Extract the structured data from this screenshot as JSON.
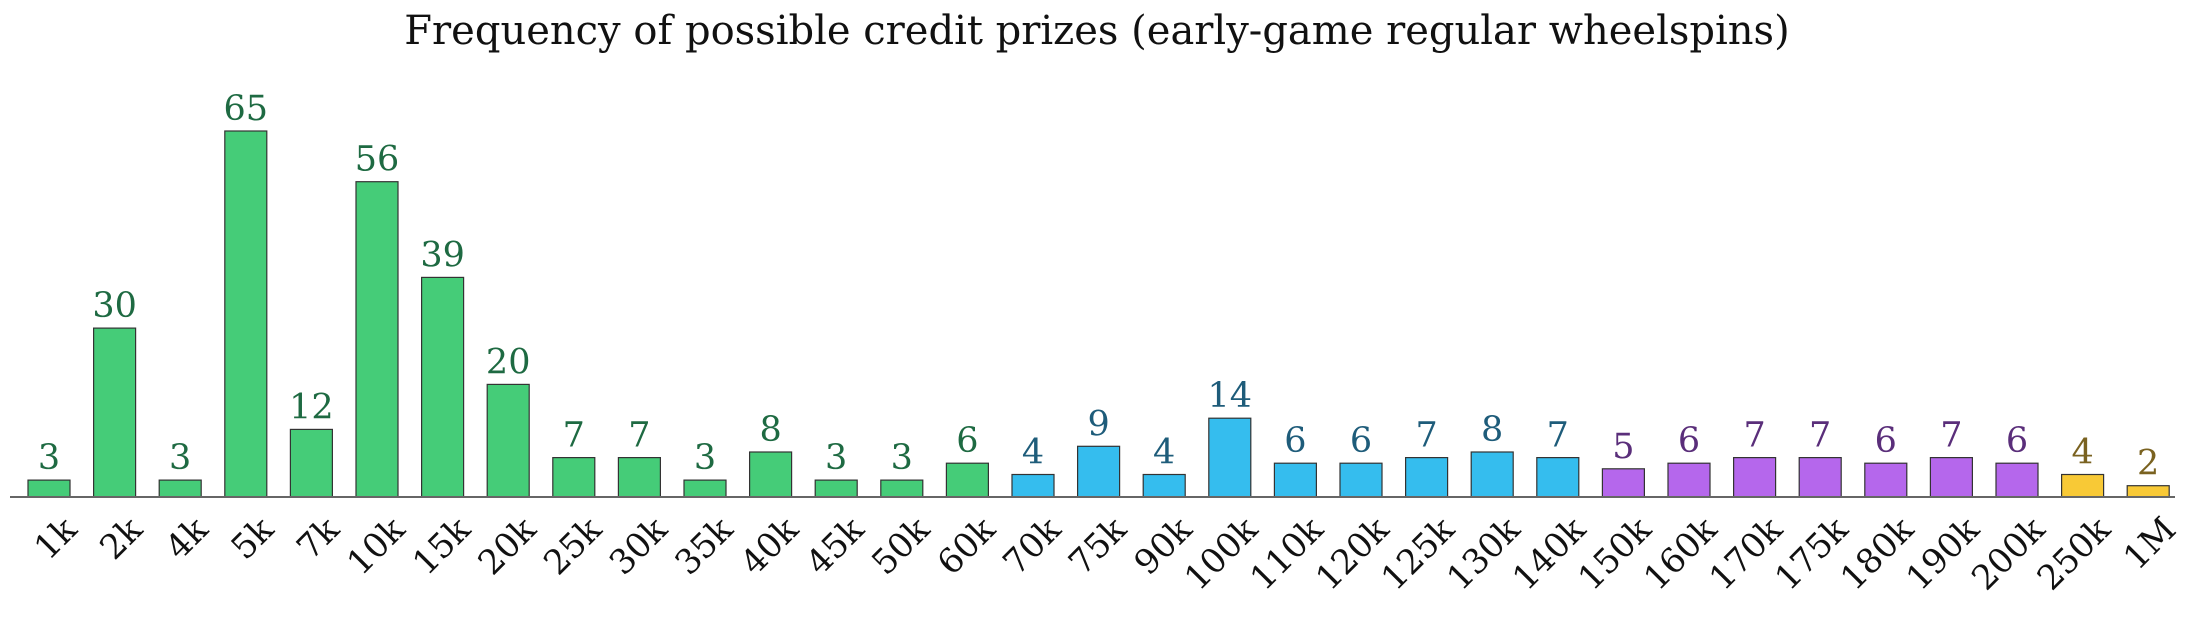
{
  "chart_data": {
    "type": "bar",
    "title": "Frequency of possible credit prizes (early-game regular wheelspins)",
    "xlabel": "",
    "ylabel": "",
    "ylim": [
      0,
      65
    ],
    "grid": false,
    "categories": [
      "1k",
      "2k",
      "4k",
      "5k",
      "7k",
      "10k",
      "15k",
      "20k",
      "25k",
      "30k",
      "35k",
      "40k",
      "45k",
      "50k",
      "60k",
      "70k",
      "75k",
      "90k",
      "100k",
      "110k",
      "120k",
      "125k",
      "130k",
      "140k",
      "150k",
      "160k",
      "170k",
      "175k",
      "180k",
      "190k",
      "200k",
      "250k",
      "1M"
    ],
    "values": [
      3,
      30,
      3,
      65,
      12,
      56,
      39,
      20,
      7,
      7,
      3,
      8,
      3,
      3,
      6,
      4,
      9,
      4,
      14,
      6,
      6,
      7,
      8,
      7,
      5,
      6,
      7,
      7,
      6,
      7,
      6,
      4,
      2
    ],
    "tiers": [
      "green",
      "green",
      "green",
      "green",
      "green",
      "green",
      "green",
      "green",
      "green",
      "green",
      "green",
      "green",
      "green",
      "green",
      "green",
      "blue",
      "blue",
      "blue",
      "blue",
      "blue",
      "blue",
      "blue",
      "blue",
      "blue",
      "purple",
      "purple",
      "purple",
      "purple",
      "purple",
      "purple",
      "purple",
      "gold",
      "gold"
    ],
    "colors": {
      "green": {
        "fill": "#45cc78",
        "label": "#1e6a42"
      },
      "blue": {
        "fill": "#35bdee",
        "label": "#1e5c7a"
      },
      "purple": {
        "fill": "#b567ec",
        "label": "#5a2e7a"
      },
      "gold": {
        "fill": "#f8c936",
        "label": "#7a6220"
      }
    },
    "bar_outline": "#333333"
  }
}
